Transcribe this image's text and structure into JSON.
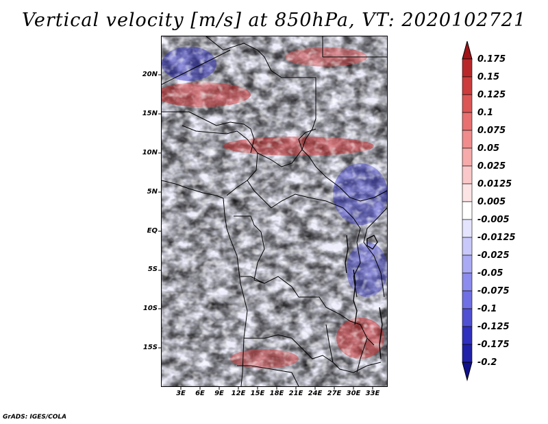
{
  "title": "Vertical velocity [m/s] at 850hPa, VT: 2020102721",
  "footer": "GrADS: IGES/COLA",
  "map": {
    "lat_labels": [
      "20N",
      "15N",
      "10N",
      "5N",
      "EQ",
      "5S",
      "10S",
      "15S"
    ],
    "lon_labels": [
      "3E",
      "6E",
      "9E",
      "12E",
      "15E",
      "18E",
      "21E",
      "24E",
      "27E",
      "30E",
      "33E"
    ]
  },
  "colorbar": {
    "labels": [
      "0.175",
      "0.15",
      "0.125",
      "0.1",
      "0.075",
      "0.05",
      "0.025",
      "0.0125",
      "0.005",
      "-0.005",
      "-0.0125",
      "-0.025",
      "-0.05",
      "-0.075",
      "-0.1",
      "-0.125",
      "-0.175",
      "-0.2"
    ],
    "colors": [
      "#a01418",
      "#b8282a",
      "#cc3c3c",
      "#dc5656",
      "#e87070",
      "#f08c8c",
      "#f6aaaa",
      "#fac8c8",
      "#fde4e4",
      "#ffffff",
      "#e4e4fe",
      "#c8c8fa",
      "#aaaaf4",
      "#8c8cee",
      "#7070e4",
      "#5050d2",
      "#3030be",
      "#2020a8",
      "#10108c"
    ]
  }
}
